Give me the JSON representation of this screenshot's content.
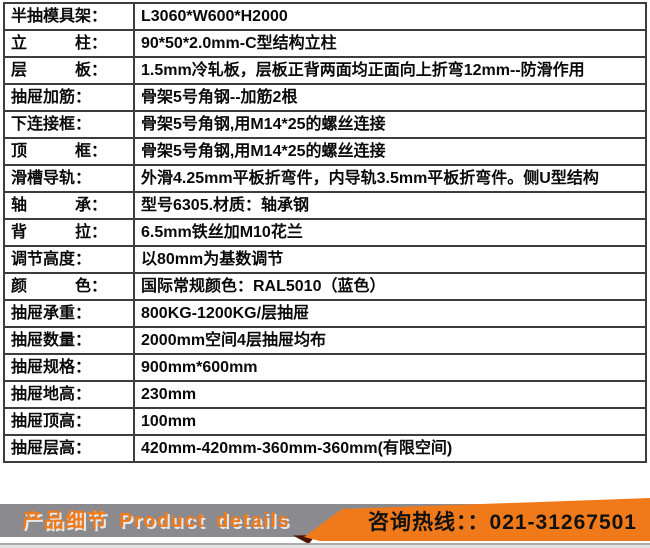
{
  "table": {
    "rows": [
      {
        "label": "半抽模具架：",
        "value": "L3060*W600*H2000"
      },
      {
        "label": "立　　　柱：",
        "value": "90*50*2.0mm-C型结构立柱"
      },
      {
        "label": "层　　　板：",
        "value": "1.5mm冷轧板，层板正背两面均正面向上折弯12mm--防滑作用"
      },
      {
        "label": "抽屉加筋：",
        "value": "骨架5号角钢--加筋2根"
      },
      {
        "label": "下连接框：",
        "value": "骨架5号角钢,用M14*25的螺丝连接"
      },
      {
        "label": "顶　　　框：",
        "value": "骨架5号角钢,用M14*25的螺丝连接"
      },
      {
        "label": "滑槽导轨：",
        "value": "外滑4.25mm平板折弯件，内导轨3.5mm平板折弯件。侧U型结构"
      },
      {
        "label": "轴　　　承：",
        "value": "型号6305.材质：轴承钢"
      },
      {
        "label": "背　　　拉：",
        "value": "6.5mm铁丝加M10花兰"
      },
      {
        "label": "调节高度：",
        "value": "以80mm为基数调节"
      },
      {
        "label": "颜　　　色：",
        "value": "国际常规颜色：RAL5010（蓝色）"
      },
      {
        "label": "抽屉承重：",
        "value": "800KG-1200KG/层抽屉"
      },
      {
        "label": "抽屉数量：",
        "value": "2000mm空间4层抽屉均布"
      },
      {
        "label": "抽屉规格：",
        "value": "900mm*600mm"
      },
      {
        "label": "抽屉地高：",
        "value": "230mm"
      },
      {
        "label": "抽屉顶高：",
        "value": "100mm"
      },
      {
        "label": "抽屉层高：",
        "value": "420mm-420mm-360mm-360mm(有限空间)"
      }
    ]
  },
  "banner": {
    "left_text": "产品细节 Product details",
    "hotline_text": "咨询热线：：021-31267501"
  },
  "colors": {
    "accent_orange": "#f07a1a",
    "ribbon_gray": "#8b8b8f",
    "fold_dark": "#4d1300",
    "table_border": "#3d3d3d",
    "blue_note": "RAL5010"
  }
}
